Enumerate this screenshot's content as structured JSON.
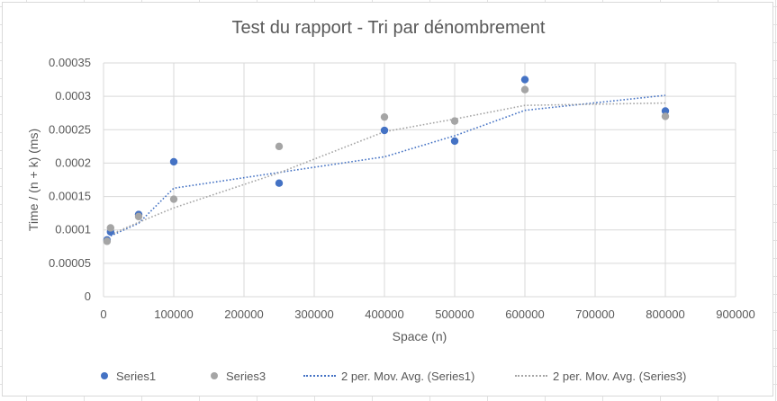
{
  "chart_data": {
    "type": "scatter",
    "title": "Test du rapport - Tri par dénombrement",
    "xlabel": "Space (n)",
    "ylabel": "Time / (n + k) (ms)",
    "xlim": [
      0,
      900000
    ],
    "ylim": [
      0,
      0.00035
    ],
    "x_ticks": [
      "0",
      "100000",
      "200000",
      "300000",
      "400000",
      "500000",
      "600000",
      "700000",
      "800000",
      "900000"
    ],
    "y_ticks": [
      "0",
      "0.00005",
      "0.0001",
      "0.00015",
      "0.0002",
      "0.00025",
      "0.0003",
      "0.00035"
    ],
    "x_tick_values": [
      0,
      100000,
      200000,
      300000,
      400000,
      500000,
      600000,
      700000,
      800000,
      900000
    ],
    "y_tick_values": [
      0,
      5e-05,
      0.0001,
      0.00015,
      0.0002,
      0.00025,
      0.0003,
      0.00035
    ],
    "grid": true,
    "legend_position": "bottom",
    "series": [
      {
        "name": "Series1",
        "color": "#4472c4",
        "x": [
          5000,
          10000,
          50000,
          100000,
          250000,
          400000,
          500000,
          600000,
          800000
        ],
        "y": [
          8.5e-05,
          9.7e-05,
          0.000123,
          0.000202,
          0.00017,
          0.000249,
          0.000233,
          0.000325,
          0.000278
        ]
      },
      {
        "name": "Series3",
        "color": "#a5a5a5",
        "x": [
          5000,
          10000,
          50000,
          100000,
          250000,
          400000,
          500000,
          600000,
          800000
        ],
        "y": [
          8.3e-05,
          0.000103,
          0.00012,
          0.000146,
          0.000225,
          0.000269,
          0.000263,
          0.00031,
          0.00027
        ]
      }
    ],
    "trendlines": [
      {
        "name": "2 per. Mov. Avg. (Series1)",
        "of": "Series1",
        "color": "#4472c4",
        "period": 2
      },
      {
        "name": "2 per. Mov. Avg. (Series3)",
        "of": "Series3",
        "color": "#a5a5a5",
        "period": 2
      }
    ]
  }
}
